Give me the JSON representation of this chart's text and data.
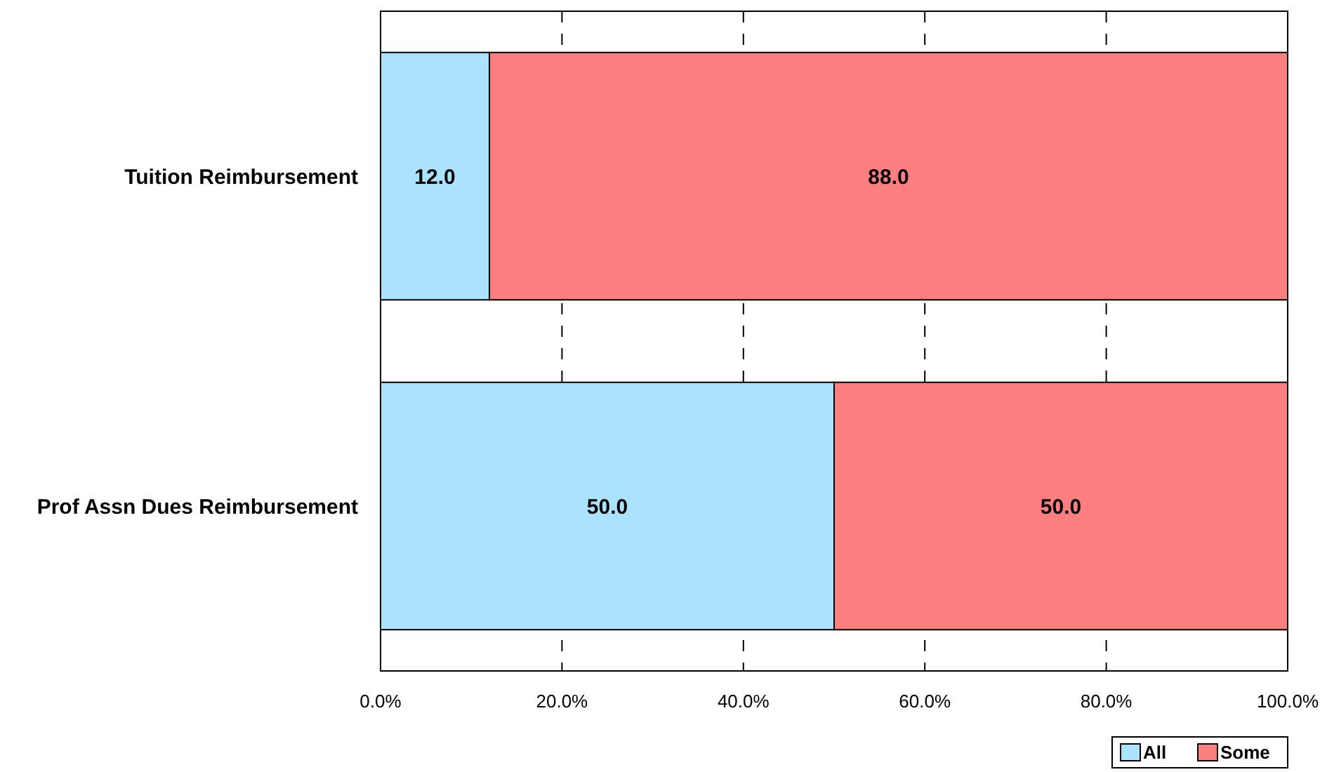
{
  "chart_data": {
    "type": "bar",
    "orientation": "horizontal",
    "stacked": true,
    "categories": [
      "Tuition Reimbursement",
      "Prof Assn Dues Reimbursement"
    ],
    "series": [
      {
        "name": "All",
        "color": "#abe3fe",
        "values": [
          12,
          50
        ],
        "value_labels": [
          "12.0",
          "50.0"
        ]
      },
      {
        "name": "Some",
        "color": "#fe7f7f",
        "values": [
          88,
          50
        ],
        "value_labels": [
          "88.0",
          "50.0"
        ]
      }
    ],
    "xlim": [
      0,
      100
    ],
    "xticks": [
      {
        "value": 0,
        "label": "0.0%"
      },
      {
        "value": 20,
        "label": "20.0%"
      },
      {
        "value": 40,
        "label": "40.0%"
      },
      {
        "value": 60,
        "label": "60.0%"
      },
      {
        "value": 80,
        "label": "80.0%"
      },
      {
        "value": 100,
        "label": "100.0%"
      }
    ],
    "grid": "x",
    "legend": "bottom right"
  }
}
